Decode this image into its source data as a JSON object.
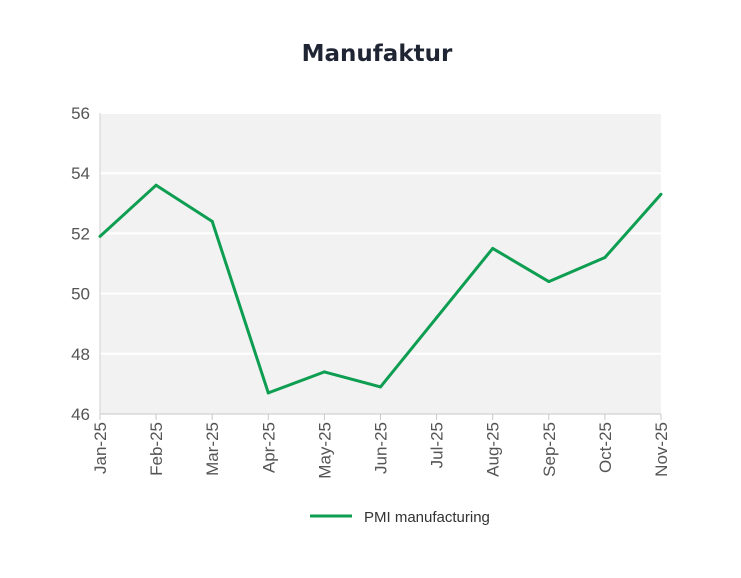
{
  "chart_data": {
    "type": "line",
    "title": "Manufaktur",
    "xlabel": "",
    "ylabel": "",
    "categories": [
      "Jan-25",
      "Feb-25",
      "Mar-25",
      "Apr-25",
      "May-25",
      "Jun-25",
      "Jul-25",
      "Aug-25",
      "Sep-25",
      "Oct-25",
      "Nov-25"
    ],
    "series": [
      {
        "name": "PMI manufacturing",
        "values": [
          51.9,
          53.6,
          52.4,
          46.7,
          47.4,
          46.9,
          49.2,
          51.5,
          50.4,
          51.2,
          53.3
        ],
        "color": "#0e9e52"
      }
    ],
    "yticks": [
      "46",
      "48",
      "50",
      "52",
      "54",
      "56"
    ],
    "ylim": [
      46,
      56
    ],
    "grid": "horizontal",
    "legend_position": "bottom-center",
    "plot_background": "#f2f2f2"
  }
}
